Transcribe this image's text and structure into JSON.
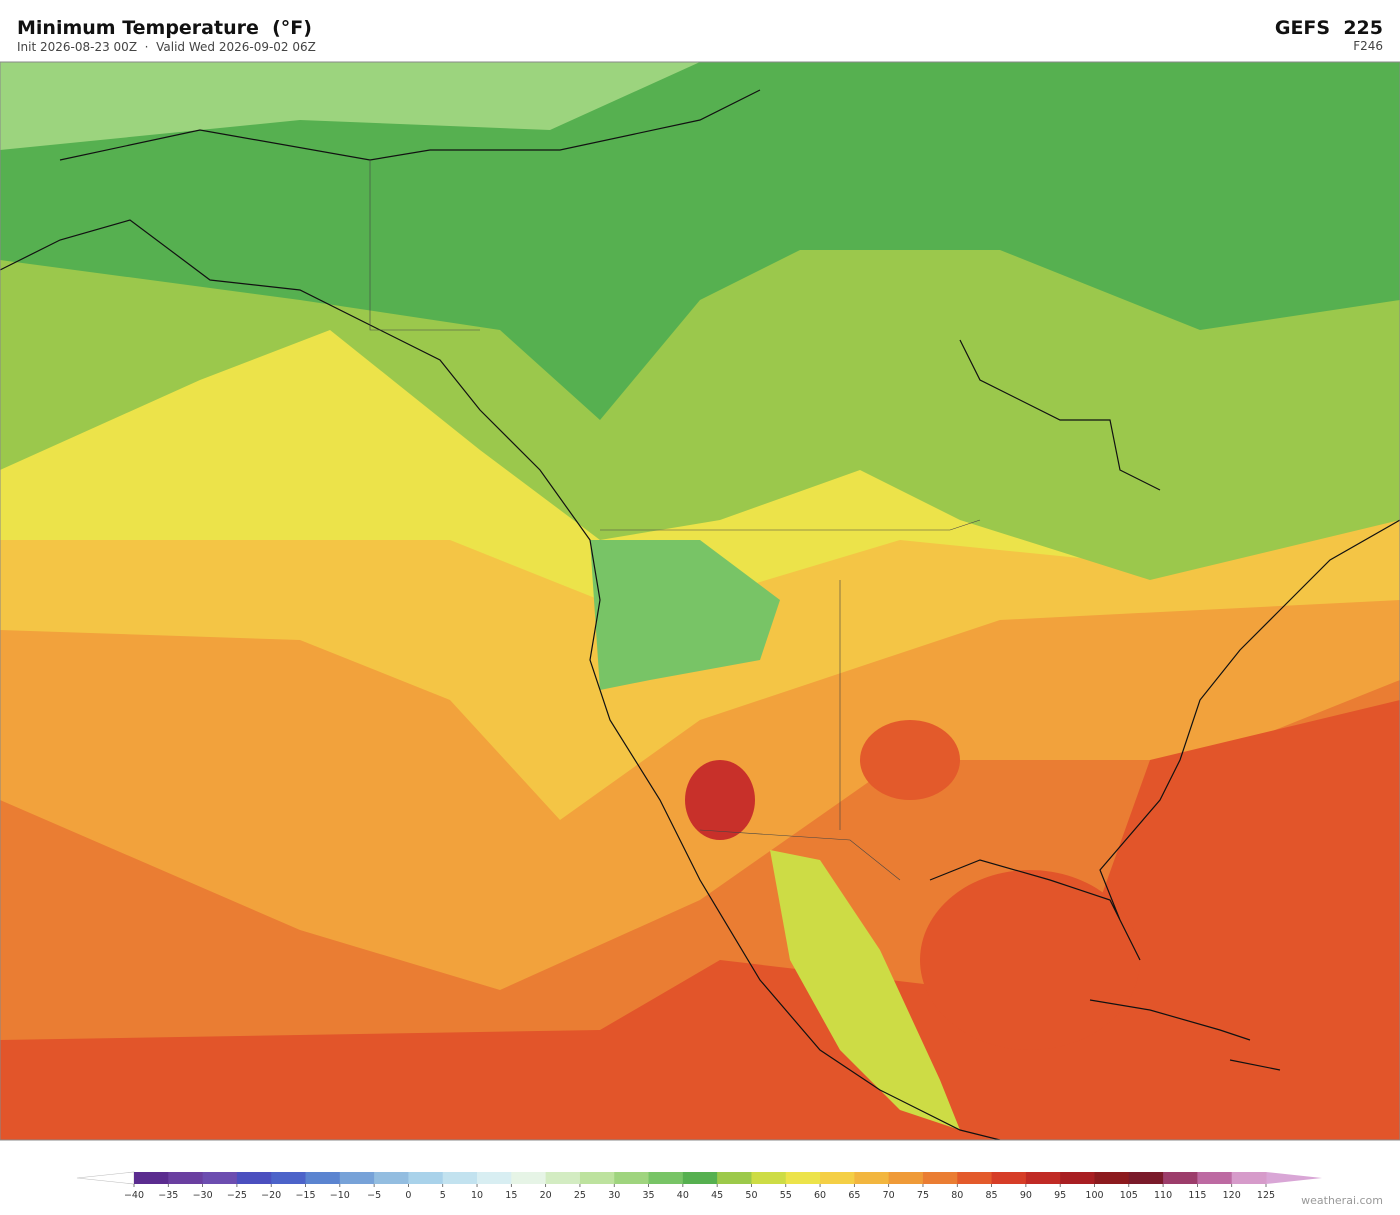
{
  "header": {
    "title": "Minimum Temperature  (°F)",
    "subtitle": "Init 2026-08-23 00Z  ·  Valid Wed 2026-09-02 06Z",
    "model": "GEFS  225",
    "forecast_hour": "F246"
  },
  "colorbar": {
    "ticks": [
      {
        "value": -40,
        "label": "−40"
      },
      {
        "value": -35,
        "label": "−35"
      },
      {
        "value": -30,
        "label": "−30"
      },
      {
        "value": -25,
        "label": "−25"
      },
      {
        "value": -20,
        "label": "−20"
      },
      {
        "value": -15,
        "label": "−15"
      },
      {
        "value": -10,
        "label": "−10"
      },
      {
        "value": -5,
        "label": "−5"
      },
      0,
      5,
      10,
      15,
      20,
      25,
      30,
      35,
      40,
      45,
      50,
      55,
      60,
      65,
      70,
      75,
      80,
      85,
      90,
      95,
      100,
      105,
      110,
      115,
      120,
      125
    ],
    "colors": [
      "#5b2c8f",
      "#6a3fa0",
      "#6c4db0",
      "#4b4fbf",
      "#4c63c9",
      "#5b84d0",
      "#77a2d8",
      "#93bde0",
      "#a9d2ea",
      "#c2e2ef",
      "#d8eef2",
      "#e6f4e6",
      "#d3ecc2",
      "#bde29e",
      "#9fd47e",
      "#78c466",
      "#56b050",
      "#9cc94a",
      "#cddc45",
      "#ece34a",
      "#f4cf45",
      "#f2b63f",
      "#ef9a38",
      "#ea7d33",
      "#e35a2b",
      "#d63d27",
      "#c02a25",
      "#a81e22",
      "#8c1a1e",
      "#7a1a2a",
      "#9c3d6b",
      "#bd6aa2",
      "#d69bca"
    ],
    "under_color": "#ffffff",
    "over_color": "#d9a6d6"
  },
  "watermark": "weatherai.com"
}
